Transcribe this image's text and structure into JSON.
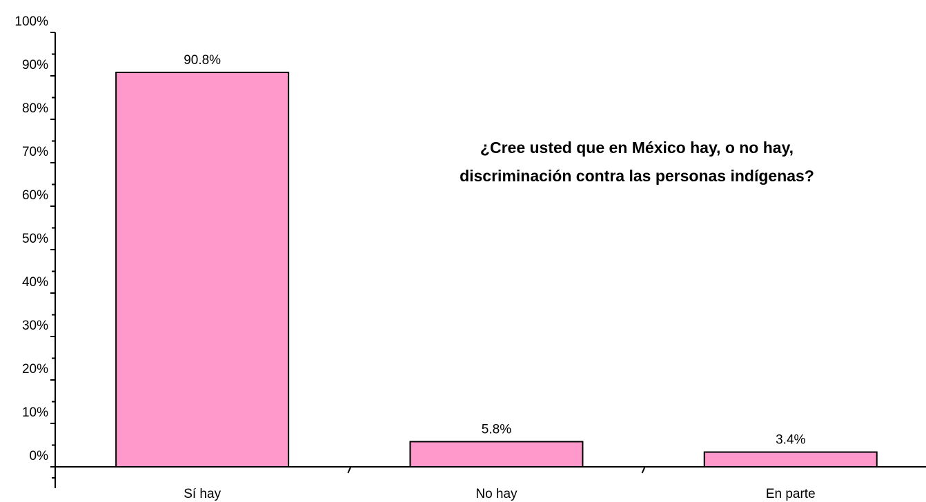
{
  "chart_data": {
    "type": "bar",
    "title_lines": [
      "¿Cree usted que en México hay, o no hay,",
      "discriminación contra las personas indígenas?"
    ],
    "categories": [
      "Sí hay",
      "No hay",
      "En parte"
    ],
    "values": [
      90.8,
      5.8,
      3.4
    ],
    "data_labels": [
      "90.8%",
      "5.8%",
      "3.4%"
    ],
    "ylim": [
      0,
      100
    ],
    "yticks": [
      0,
      10,
      20,
      30,
      40,
      50,
      60,
      70,
      80,
      90,
      100
    ],
    "ytick_labels": [
      "0%",
      "10%",
      "20%",
      "30%",
      "40%",
      "50%",
      "60%",
      "70%",
      "80%",
      "90%",
      "100%"
    ],
    "xlabel": "",
    "ylabel": "",
    "grid": false,
    "legend": "none",
    "bar_color": "#FF99CC",
    "bar_edge_color": "#000000"
  }
}
